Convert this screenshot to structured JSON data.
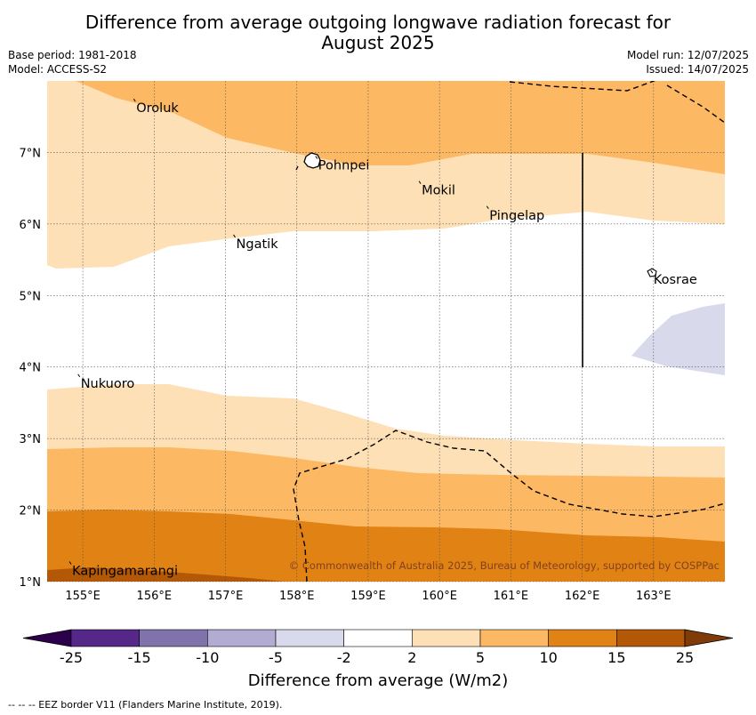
{
  "header": {
    "title_line1": "Difference from average outgoing longwave radiation forecast for",
    "title_line2": "August 2025",
    "base_period": "Base period: 1981-2018",
    "model": "Model: ACCESS-S2",
    "model_run": "Model run: 12/07/2025",
    "issued": "Issued: 14/07/2025"
  },
  "map": {
    "lon_range": [
      154.5,
      164.0
    ],
    "lat_range": [
      1.0,
      8.0
    ],
    "lon_ticks": [
      {
        "value": 155,
        "label": "155°E"
      },
      {
        "value": 156,
        "label": "156°E"
      },
      {
        "value": 157,
        "label": "157°E"
      },
      {
        "value": 158,
        "label": "158°E"
      },
      {
        "value": 159,
        "label": "159°E"
      },
      {
        "value": 160,
        "label": "160°E"
      },
      {
        "value": 161,
        "label": "161°E"
      },
      {
        "value": 162,
        "label": "162°E"
      },
      {
        "value": 163,
        "label": "163°E"
      }
    ],
    "lat_ticks": [
      {
        "value": 1,
        "label": "1°N"
      },
      {
        "value": 2,
        "label": "2°N"
      },
      {
        "value": 3,
        "label": "3°N"
      },
      {
        "value": 4,
        "label": "4°N"
      },
      {
        "value": 5,
        "label": "5°N"
      },
      {
        "value": 6,
        "label": "6°N"
      },
      {
        "value": 7,
        "label": "7°N"
      }
    ],
    "places": [
      {
        "name": "Oroluk",
        "lon": 155.75,
        "lat": 7.7
      },
      {
        "name": "Pohnpei",
        "lon": 158.3,
        "lat": 6.9
      },
      {
        "name": "Mokil",
        "lon": 159.75,
        "lat": 6.55
      },
      {
        "name": "Pingelap",
        "lon": 160.7,
        "lat": 6.2
      },
      {
        "name": "Ngatik",
        "lon": 157.15,
        "lat": 5.8
      },
      {
        "name": "Kosrae",
        "lon": 163.0,
        "lat": 5.3
      },
      {
        "name": "Nukuoro",
        "lon": 154.97,
        "lat": 3.85
      },
      {
        "name": "Kapingamarangi",
        "lon": 154.85,
        "lat": 1.23
      }
    ],
    "credit": "© Commonwealth of Australia 2025, Bureau of Meteorology, supported by COSPPac"
  },
  "colorbar": {
    "title": "Difference from average (W/m2)",
    "ticks": [
      "-25",
      "-15",
      "-10",
      "-5",
      "-2",
      "2",
      "5",
      "10",
      "15",
      "25"
    ],
    "colors": {
      "below": "#2d004b",
      "bins": [
        "#542788",
        "#8073ac",
        "#b2abd2",
        "#d8daeb",
        "#ffffff",
        "#fee0b6",
        "#fdb863",
        "#e08214",
        "#b35806"
      ],
      "above": "#7f3b08"
    }
  },
  "footer": {
    "eez_note": "--  --  -- EEZ border V11 (Flanders Marine Institute, 2019)."
  }
}
